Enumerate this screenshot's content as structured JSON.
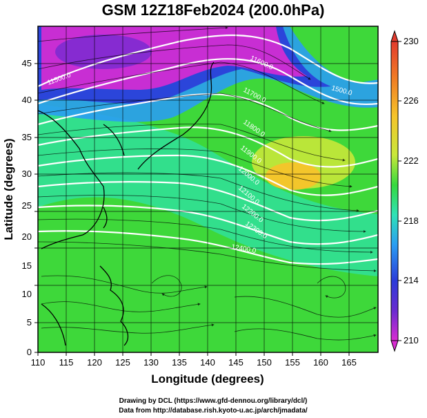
{
  "title": "GSM 12Z18Feb2024 (200.0hPa)",
  "xlabel": "Longitude (degrees)",
  "ylabel": "Latitude  (degrees)",
  "credits": [
    "Drawing by DCL (https://www.gfd-dennou.org/library/dcl/)",
    "Data from http://database.rish.kyoto-u.ac.jp/arch/jmadata/"
  ],
  "map": {
    "lon_range": [
      110,
      170
    ],
    "lat_range": [
      0,
      50
    ],
    "x_ticks": [
      "110",
      "115",
      "120",
      "125",
      "130",
      "135",
      "140",
      "145",
      "150",
      "155",
      "160",
      "165"
    ],
    "y_ticks": [
      "0",
      "5",
      "10",
      "15",
      "20",
      "25",
      "30",
      "35",
      "40",
      "45"
    ],
    "overlays": [
      "temperature shading",
      "geopotential height contours",
      "wind streamlines",
      "coastlines",
      "grid"
    ]
  },
  "colorbar": {
    "min": 210,
    "max": 230,
    "labels": [
      "230",
      "226",
      "222",
      "218",
      "214",
      "210"
    ],
    "colors": [
      "#e23b2e",
      "#f07a24",
      "#f5c42a",
      "#c8e83a",
      "#35d93e",
      "#2fe2b7",
      "#2a9df2",
      "#2b3bd9",
      "#6a2bd0",
      "#d92bd2"
    ]
  },
  "contour_labels": [
    {
      "text": "11500.0"
    },
    {
      "text": "11600.0"
    },
    {
      "text": "11700.0"
    },
    {
      "text": "11800.0"
    },
    {
      "text": "11900.0"
    },
    {
      "text": "12000.0"
    },
    {
      "text": "12100.0"
    },
    {
      "text": "12200.0"
    },
    {
      "text": "12300.0"
    },
    {
      "text": "12400.0"
    },
    {
      "text": "1500.0"
    }
  ]
}
